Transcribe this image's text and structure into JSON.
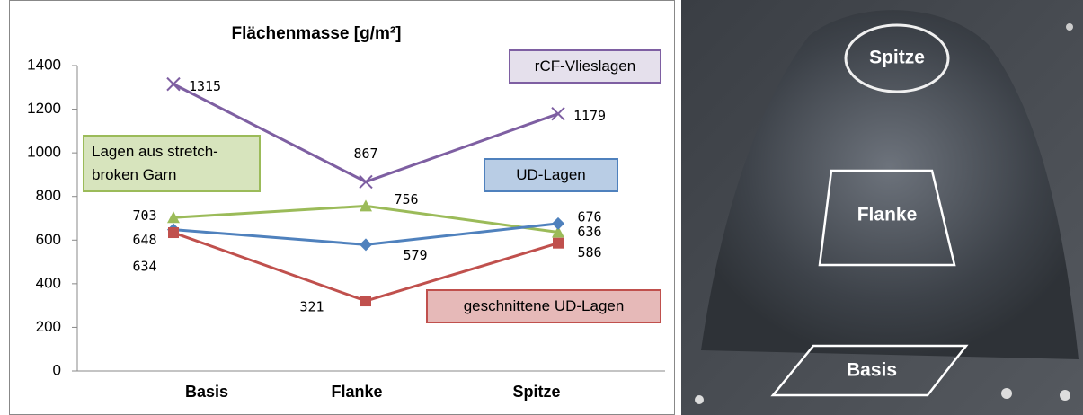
{
  "chart_data": {
    "type": "line",
    "title": "Flächenmasse [g/m²]",
    "categories": [
      "Basis",
      "Flanke",
      "Spitze"
    ],
    "series": [
      {
        "name": "rCF-Vlieslagen",
        "color": "#7e5fa2",
        "marker": "x",
        "values": [
          1315,
          867,
          1179
        ]
      },
      {
        "name": "Lagen aus stretch-broken Garn",
        "color": "#9bbb59",
        "marker": "triangle",
        "values": [
          703,
          756,
          636
        ]
      },
      {
        "name": "UD-Lagen",
        "color": "#4f81bd",
        "marker": "diamond",
        "values": [
          648,
          579,
          676
        ]
      },
      {
        "name": "geschnittene UD-Lagen",
        "color": "#c0504d",
        "marker": "square",
        "values": [
          634,
          321,
          586
        ]
      }
    ],
    "ylim": [
      0,
      1400
    ],
    "yticks": [
      0,
      200,
      400,
      600,
      800,
      1000,
      1200,
      1400
    ],
    "grid": false
  },
  "photo": {
    "labels": [
      "Spitze",
      "Flanke",
      "Basis"
    ]
  }
}
